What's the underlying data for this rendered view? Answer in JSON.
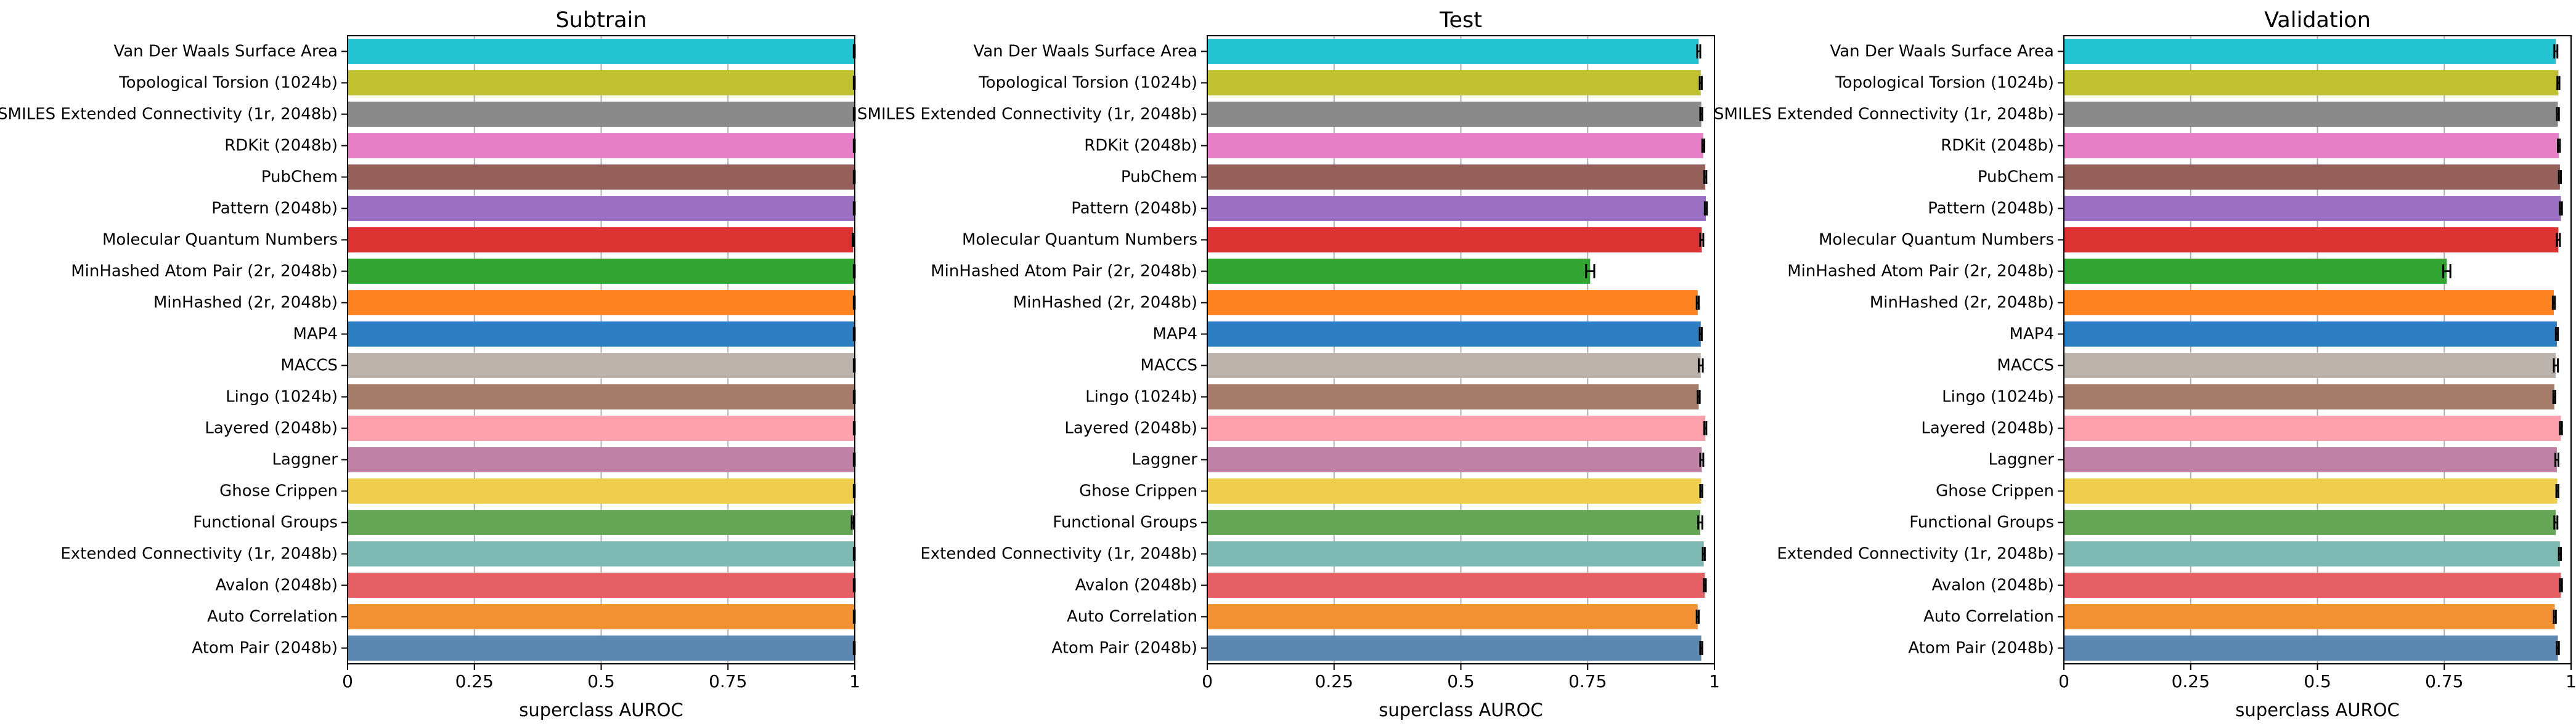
{
  "chart_data": [
    {
      "type": "bar",
      "orientation": "horizontal",
      "title": "Subtrain",
      "xlabel": "superclass AUROC",
      "ylabel": "",
      "xlim": [
        0,
        1.0
      ],
      "xticks": [
        0,
        0.25,
        0.5,
        0.75,
        1
      ],
      "xtick_labels": [
        "0",
        "0.25",
        "0.5",
        "0.75",
        "1"
      ],
      "grid": "vertical",
      "categories": [
        "Van Der Waals Surface Area",
        "Topological Torsion (1024b)",
        "SMILES Extended Connectivity (1r, 2048b)",
        "RDKit (2048b)",
        "PubChem",
        "Pattern (2048b)",
        "Molecular Quantum Numbers",
        "MinHashed Atom Pair (2r, 2048b)",
        "MinHashed (2r, 2048b)",
        "MAP4",
        "MACCS",
        "Lingo (1024b)",
        "Layered (2048b)",
        "Laggner",
        "Ghose Crippen",
        "Functional Groups",
        "Extended Connectivity (1r, 2048b)",
        "Avalon (2048b)",
        "Auto Correlation",
        "Atom Pair (2048b)"
      ],
      "values": [
        0.999,
        0.999,
        0.999,
        0.999,
        0.999,
        0.999,
        0.997,
        0.999,
        0.999,
        0.999,
        0.999,
        0.999,
        0.999,
        0.999,
        0.999,
        0.996,
        0.999,
        0.999,
        0.999,
        0.999
      ],
      "errors": [
        0.001,
        0.001,
        0.001,
        0.001,
        0.001,
        0.001,
        0.001,
        0.001,
        0.001,
        0.001,
        0.001,
        0.001,
        0.001,
        0.001,
        0.001,
        0.002,
        0.001,
        0.001,
        0.001,
        0.001
      ]
    },
    {
      "type": "bar",
      "orientation": "horizontal",
      "title": "Test",
      "xlabel": "superclass AUROC",
      "ylabel": "",
      "xlim": [
        0,
        1.0
      ],
      "xticks": [
        0,
        0.25,
        0.5,
        0.75,
        1
      ],
      "xtick_labels": [
        "0",
        "0.25",
        "0.5",
        "0.75",
        "1"
      ],
      "grid": "vertical",
      "categories": [
        "Van Der Waals Surface Area",
        "Topological Torsion (1024b)",
        "SMILES Extended Connectivity (1r, 2048b)",
        "RDKit (2048b)",
        "PubChem",
        "Pattern (2048b)",
        "Molecular Quantum Numbers",
        "MinHashed Atom Pair (2r, 2048b)",
        "MinHashed (2r, 2048b)",
        "MAP4",
        "MACCS",
        "Lingo (1024b)",
        "Layered (2048b)",
        "Laggner",
        "Ghose Crippen",
        "Functional Groups",
        "Extended Connectivity (1r, 2048b)",
        "Avalon (2048b)",
        "Auto Correlation",
        "Atom Pair (2048b)"
      ],
      "values": [
        0.969,
        0.973,
        0.974,
        0.978,
        0.982,
        0.983,
        0.975,
        0.755,
        0.967,
        0.973,
        0.973,
        0.969,
        0.982,
        0.975,
        0.974,
        0.972,
        0.979,
        0.981,
        0.967,
        0.974
      ],
      "errors": [
        0.003,
        0.002,
        0.002,
        0.002,
        0.002,
        0.002,
        0.003,
        0.008,
        0.002,
        0.002,
        0.004,
        0.002,
        0.002,
        0.003,
        0.002,
        0.004,
        0.002,
        0.002,
        0.002,
        0.002
      ]
    },
    {
      "type": "bar",
      "orientation": "horizontal",
      "title": "Validation",
      "xlabel": "superclass AUROC",
      "ylabel": "",
      "xlim": [
        0,
        1.0
      ],
      "xticks": [
        0,
        0.25,
        0.5,
        0.75,
        1
      ],
      "xtick_labels": [
        "0",
        "0.25",
        "0.5",
        "0.75",
        "1"
      ],
      "grid": "vertical",
      "categories": [
        "Van Der Waals Surface Area",
        "Topological Torsion (1024b)",
        "SMILES Extended Connectivity (1r, 2048b)",
        "RDKit (2048b)",
        "PubChem",
        "Pattern (2048b)",
        "Molecular Quantum Numbers",
        "MinHashed Atom Pair (2r, 2048b)",
        "MinHashed (2r, 2048b)",
        "MAP4",
        "MACCS",
        "Lingo (1024b)",
        "Layered (2048b)",
        "Laggner",
        "Ghose Crippen",
        "Functional Groups",
        "Extended Connectivity (1r, 2048b)",
        "Avalon (2048b)",
        "Auto Correlation",
        "Atom Pair (2048b)"
      ],
      "values": [
        0.97,
        0.975,
        0.974,
        0.976,
        0.978,
        0.98,
        0.975,
        0.755,
        0.966,
        0.972,
        0.97,
        0.967,
        0.98,
        0.972,
        0.973,
        0.97,
        0.978,
        0.98,
        0.968,
        0.974
      ],
      "errors": [
        0.003,
        0.002,
        0.002,
        0.002,
        0.002,
        0.002,
        0.003,
        0.007,
        0.002,
        0.002,
        0.004,
        0.002,
        0.002,
        0.003,
        0.002,
        0.003,
        0.002,
        0.002,
        0.002,
        0.002
      ]
    }
  ],
  "colors": [
    "#24c3d2",
    "#bfc131",
    "#8a8a8a",
    "#e67fc6",
    "#96605a",
    "#9b6fc1",
    "#db3232",
    "#32a432",
    "#ff8421",
    "#2e7fc1",
    "#bcb3ad",
    "#a57c6a",
    "#ffa0ad",
    "#c081a7",
    "#efce4f",
    "#65a756",
    "#7ebab3",
    "#e46064",
    "#f39235",
    "#5b87b0"
  ]
}
